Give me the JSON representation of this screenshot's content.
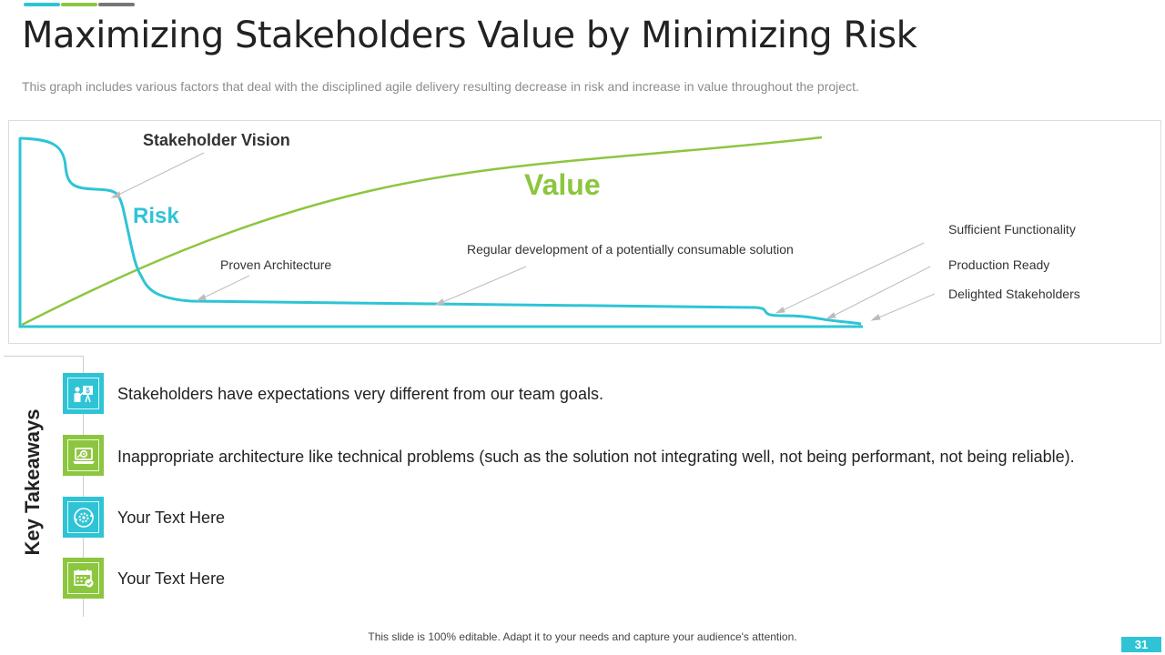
{
  "colors": {
    "accent_teal": "#2ec4d6",
    "accent_green": "#8cc63f",
    "accent_gray": "#777777"
  },
  "title": "Maximizing Stakeholders Value by Minimizing Risk",
  "subtitle": "This graph includes various factors that deal with the disciplined agile delivery resulting decrease in risk and increase in value throughout the project.",
  "graph": {
    "label_stakeholder_vision": "Stakeholder Vision",
    "label_risk": "Risk",
    "label_value": "Value",
    "label_proven_architecture": "Proven Architecture",
    "label_regular_development": "Regular development of a potentially consumable solution",
    "label_sufficient_functionality": "Sufficient Functionality",
    "label_production_ready": "Production Ready",
    "label_delighted_stakeholders": "Delighted Stakeholders",
    "curves": {
      "risk_color": "#2ec4d6",
      "value_color": "#8cc63f"
    }
  },
  "takeaways": {
    "heading": "Key Takeaways",
    "items": [
      {
        "text": "Stakeholders have expectations very different from our team goals.",
        "icon": "presentation-icon",
        "color": "#2ec4d6"
      },
      {
        "text": "Inappropriate architecture like technical problems (such as the solution not integrating well,  not being performant, not being reliable).",
        "icon": "laptop-gear-icon",
        "color": "#8cc63f"
      },
      {
        "text": "Your Text Here",
        "icon": "gear-cycle-icon",
        "color": "#2ec4d6"
      },
      {
        "text": "Your Text Here",
        "icon": "calendar-check-icon",
        "color": "#8cc63f"
      }
    ]
  },
  "footer": "This slide is 100% editable. Adapt it to your needs and capture your audience's attention.",
  "page_number": "31"
}
